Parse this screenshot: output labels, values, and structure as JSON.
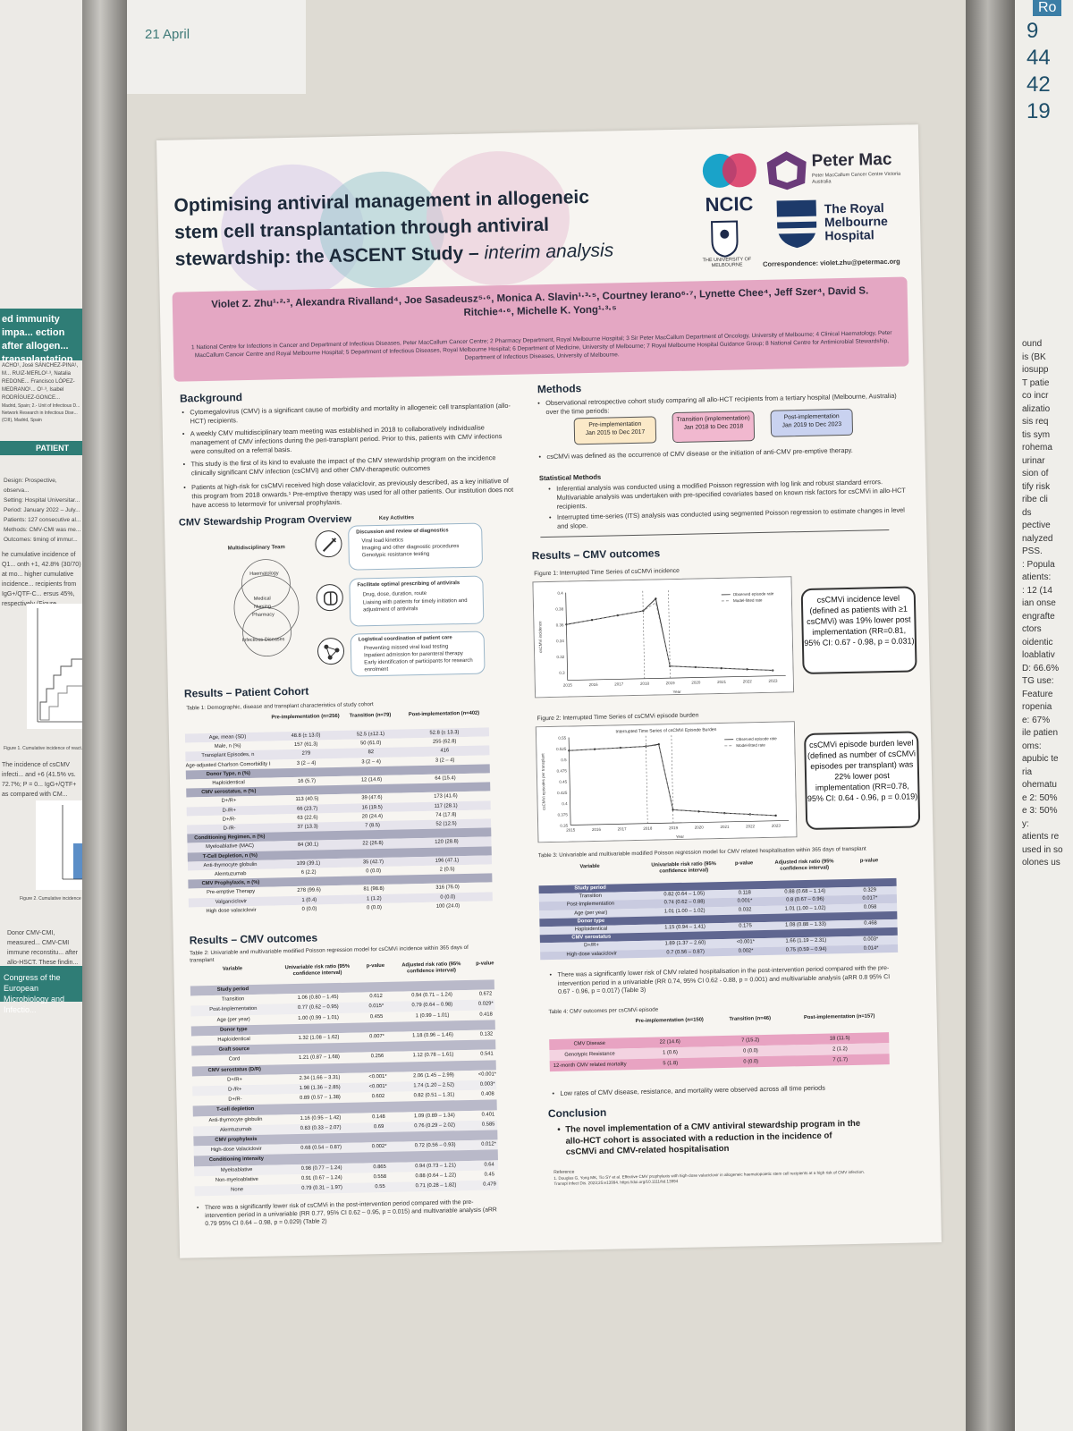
{
  "scene": {
    "date_note": "21 April"
  },
  "left_poster": {
    "title": "ed immunity impa... ection after allogen... transplantation",
    "authors": "ACHO¹, José SÁNCHEZ-PINA¹, M... RUIZ-MERLO²·³, Natalia REDONE... Francisco LÓPEZ-MEDRANO¹... O¹·³, Isabel RODRÍGUEZ-GONCE...",
    "affil": "Madrid, Spain; 2.- Unit of Infectious D... Network Research in Infectious Dise... (CIII), Madrid, Spain",
    "patient_label": "PATIENT",
    "design_lines": [
      "Design: Prospective, observa...",
      "Setting: Hospital Universitar...",
      "Period: January 2022 – July...",
      "Patients: 127 consecutive al...",
      "Methods: CMV-CMI was me...",
      "Outcomes: timing of immur..."
    ],
    "cumulative_text": "he cumulative incidence of Q1... onth +1, 42.8% (30/70) at mo... higher cumulative incidence... recipients from IgG+/QTF-C... ersus 45%, respectively (Figure...",
    "fig1_caption": "Figure 1. Cumulative incidence of react...",
    "incidence_text": "The incidence of csCMV infecti... and +6 (41.5% vs. 72.7%; P = 0... IgG+/QTF+ as compared with CM...",
    "fig2_caption": "Figure 2. Cumulative incidence of...",
    "conclusion_text": "Donor CMV-CMI, measured... CMV-CMI immune reconstitu... after allo-HSCT. These findin... CMV-CMI functionality in all... prevention strategies.",
    "congress": "Congress of the European Microbiology and Infectio..."
  },
  "right_poster": {
    "header": "Ro",
    "numbers": [
      "9",
      "44",
      "42",
      "19"
    ],
    "lines": [
      "ound",
      "is (BK",
      "iosupp",
      "T patie",
      "co incr",
      "alizatio",
      "sis req",
      "tis sym",
      "rohema",
      "urinar",
      "sion of",
      "tify risk",
      "ribe cli",
      "ds",
      "pective",
      "nalyzed",
      "PSS.",
      ": Popula",
      "atients:",
      ": 12 (14",
      "ian onse",
      "engrafte",
      "ctors",
      "oidentic",
      "loablativ",
      "D: 66.6%",
      "TG use:",
      "Feature",
      "ropenia",
      "e: 67%",
      "ile patien",
      "oms:",
      "apubic te",
      "ria",
      "ohematu",
      "e 2: 50%",
      "e 3: 50%",
      "y:",
      "atients re",
      "used in so",
      "olones us"
    ]
  },
  "poster": {
    "title_line1": "Optimising antiviral management in allogeneic",
    "title_line2": "stem cell transplantation through antiviral",
    "title_line3_bold": "stewardship: the ASCENT Study – ",
    "title_line3_italic": "interim analysis",
    "logos": {
      "ncic": "NCIC",
      "petermac": "Peter Mac",
      "petermac_sub": "Peter MacCallum Cancer Centre Victoria Australia",
      "rmh": "The Royal Melbourne Hospital",
      "uom": "THE UNIVERSITY OF MELBOURNE",
      "correspondence": "Correspondence: violet.zhu@petermac.org"
    },
    "authors": "Violet Z. Zhu¹·²·³, Alexandra Rivalland⁴, Joe Sasadeusz⁵·⁶, Monica A. Slavin¹·³·⁵, Courtney Ierano⁶·⁷, Lynette Chee⁴, Jeff Szer⁴, David S. Ritchie⁴·⁶, Michelle K. Yong¹·³·⁵",
    "affiliations": "1 National Centre for Infections in Cancer and Department of Infectious Diseases, Peter MacCallum Cancer Centre; 2 Pharmacy Department, Royal Melbourne Hospital; 3 Sir Peter MacCallum Department of Oncology, University of Melbourne; 4 Clinical Haematology, Peter MacCallum Cancer Centre and Royal Melbourne Hospital; 5 Department of Infectious Diseases, Royal Melbourne Hospital; 6 Department of Medicine, University of Melbourne; 7 Royal Melbourne Hospital Guidance Group; 8 National Centre for Antimicrobial Stewardship, Department of Infectious Diseases, University of Melbourne.",
    "background": {
      "heading": "Background",
      "bullets": [
        "Cytomegalovirus (CMV) is a significant cause of morbidity and mortality in allogeneic cell transplantation (allo-HCT) recipients.",
        "A weekly CMV multidisciplinary team meeting was established in 2018 to collaboratively individualise management of CMV infections during the peri-transplant period. Prior to this, patients with CMV infections were consulted on a referral basis.",
        "This study is the first of its kind to evaluate the impact of the CMV stewardship program on the incidence clinically significant CMV infection (csCMVi) and other CMV-therapeutic outcomes",
        "Patients at high-risk for csCMVi received high dose valaciclovir, as previously described, as a key initiative of this program from 2018 onwards.¹ Pre-emptive therapy was used for all other patients. Our institution does not have access to letermovir for universal prophylaxis."
      ]
    },
    "overview": {
      "heading": "CMV Stewardship Program Overview",
      "key_activities": "Key Activities",
      "mdt_label": "Multidisciplinary Team",
      "circles": [
        "Haematology",
        "Medical",
        "Nursing",
        "Pharmacy",
        "Infectious Diseases"
      ],
      "cards": [
        {
          "title": "Discussion and review of diagnostics",
          "items": [
            "Viral load kinetics",
            "Imaging and other diagnostic procedures",
            "Genotypic resistance testing"
          ],
          "icon": "syringe-icon"
        },
        {
          "title": "Facilitate optimal prescribing of antivirals",
          "items": [
            "Drug, dose, duration, route",
            "Liaising with patients for timely initiation and adjustment of antivirals"
          ],
          "icon": "pill-icon"
        },
        {
          "title": "Logistical coordination of patient care",
          "items": [
            "Preventing missed viral load testing",
            "Inpatient admission for parenteral therapy",
            "Early identification of participants for research enrolment"
          ],
          "icon": "network-icon"
        }
      ]
    },
    "patient_cohort": {
      "heading": "Results – Patient Cohort",
      "table_title": "Table 1: Demographic, disease and transplant characteristics of study cohort",
      "columns": [
        "",
        "Pre-implementation (n=256)",
        "Transition (n=79)",
        "Post-implementation (n=402)"
      ],
      "rows": [
        [
          "Age, mean (SD)",
          "48.8 (± 13.0)",
          "52.5 (±12.1)",
          "52.8 (± 13.3)"
        ],
        [
          "Male, n (%)",
          "157 (61.3)",
          "50 (61.0)",
          "255 (62.8)"
        ],
        [
          "Transplant Episodes, n",
          "279",
          "82",
          "416"
        ],
        [
          "Age-adjusted Charlson Comorbidity Index, median (IQR)",
          "3 (2 – 4)",
          "3 (2 – 4)",
          "3 (2 – 4)"
        ],
        [
          "Donor Type, n (%)",
          "",
          "",
          ""
        ],
        [
          "Haploidentical",
          "16 (5.7)",
          "12 (14.6)",
          "64 (15.4)"
        ],
        [
          "CMV serostatus, n (%)",
          "",
          "",
          ""
        ],
        [
          "D+/R+",
          "113 (40.5)",
          "39 (47.6)",
          "173 (41.6)"
        ],
        [
          "D-/R+",
          "66 (23.7)",
          "16 (19.5)",
          "117 (28.1)"
        ],
        [
          "D+/R-",
          "63 (22.6)",
          "20 (24.4)",
          "74 (17.8)"
        ],
        [
          "D-/R-",
          "37 (13.3)",
          "7 (8.5)",
          "52 (12.5)"
        ],
        [
          "Conditioning Regimen, n (%)",
          "",
          "",
          ""
        ],
        [
          "Myeloablative (MAC)",
          "84 (30.1)",
          "22 (26.8)",
          "120 (28.8)"
        ],
        [
          "T-Cell Depletion, n (%)",
          "",
          "",
          ""
        ],
        [
          "Anti-thymocyte globulin",
          "109 (39.1)",
          "35 (42.7)",
          "196 (47.1)"
        ],
        [
          "Alemtuzumab",
          "6 (2.2)",
          "0 (0.0)",
          "2 (0.5)"
        ],
        [
          "CMV Prophylaxis, n (%)",
          "",
          "",
          ""
        ],
        [
          "Pre-emptive Therapy",
          "278 (99.6)",
          "81 (98.8)",
          "316 (76.0)"
        ],
        [
          "Valganciclovir",
          "1 (0.4)",
          "1 (1.2)",
          "0 (0.0)"
        ],
        [
          "High dose valaciclovir",
          "0 (0.0)",
          "0 (0.0)",
          "100 (24.0)"
        ]
      ]
    },
    "cmv_outcomes_left": {
      "heading": "Results – CMV outcomes",
      "table_title": "Table 2: Univariable and multivariable modified Poisson regression model for csCMVi incidence within 365 days of transplant",
      "columns": [
        "Variable",
        "Univariable risk ratio (95% confidence interval)",
        "p-value",
        "Adjusted risk ratio (95% confidence interval)",
        "p-value"
      ],
      "rows": [
        [
          "Study period",
          "",
          "",
          "",
          ""
        ],
        [
          "Transition",
          "1.06 (0.80 – 1.45)",
          "0.612",
          "0.94 (0.71 – 1.24)",
          "0.672"
        ],
        [
          "Post-Implementation",
          "0.77 (0.62 – 0.95)",
          "0.015*",
          "0.79 (0.64 – 0.98)",
          "0.029*"
        ],
        [
          "Age (per year)",
          "1.00 (0.99 – 1.01)",
          "0.455",
          "1 (0.99 – 1.01)",
          "0.418"
        ],
        [
          "Donor type",
          "",
          "",
          "",
          ""
        ],
        [
          "Haploidentical",
          "1.32 (1.08 – 1.62)",
          "0.007*",
          "1.18 (0.96 – 1.46)",
          "0.132"
        ],
        [
          "Graft source",
          "",
          "",
          "",
          ""
        ],
        [
          "Cord",
          "1.21 (0.87 – 1.68)",
          "0.256",
          "1.12 (0.78 – 1.61)",
          "0.541"
        ],
        [
          "CMV serostatus (D/R)",
          "",
          "",
          "",
          ""
        ],
        [
          "D+/R+",
          "2.34 (1.66 – 3.31)",
          "<0.001*",
          "2.06 (1.45 – 2.99)",
          "<0.001*"
        ],
        [
          "D-/R+",
          "1.98 (1.36 – 2.85)",
          "<0.001*",
          "1.74 (1.20 – 2.52)",
          "0.003*"
        ],
        [
          "D+/R-",
          "0.89 (0.57 – 1.38)",
          "0.602",
          "0.82 (0.51 – 1.31)",
          "0.408"
        ],
        [
          "T-cell depletion",
          "",
          "",
          "",
          ""
        ],
        [
          "Anti-thymocyte globulin",
          "1.16 (0.95 – 1.42)",
          "0.148",
          "1.09 (0.89 – 1.34)",
          "0.401"
        ],
        [
          "Alemtuzumab",
          "0.83 (0.33 – 2.07)",
          "0.69",
          "0.76 (0.29 – 2.02)",
          "0.585"
        ],
        [
          "CMV prophylaxis",
          "",
          "",
          "",
          ""
        ],
        [
          "High-dose Valaciclovir",
          "0.68 (0.54 – 0.87)",
          "0.002*",
          "0.72 (0.56 – 0.93)",
          "0.012*"
        ],
        [
          "Conditioning intensity",
          "",
          "",
          "",
          ""
        ],
        [
          "Myeloablative",
          "0.98 (0.77 – 1.24)",
          "0.865",
          "0.94 (0.73 – 1.21)",
          "0.64"
        ],
        [
          "Non-myeloablative",
          "0.91 (0.67 – 1.24)",
          "0.558",
          "0.88 (0.64 – 1.22)",
          "0.45"
        ],
        [
          "None",
          "0.79 (0.31 – 1.97)",
          "0.55",
          "0.71 (0.28 – 1.82)",
          "0.479"
        ]
      ],
      "footer": "There was a significantly lower risk of csCMVi in the post-intervention period compared with the pre-intervention period in a univariable (RR 0.77, 95% CI 0.62 – 0.95, p = 0.015) and multivariable analysis (aRR 0.79 95% CI 0.64 – 0.98, p = 0.029) (Table 2)"
    },
    "methods": {
      "heading": "Methods",
      "bullet1": "Observational retrospective cohort study comparing all allo-HCT recipients from a tertiary hospital (Melbourne, Australia) over the time periods:",
      "periods": [
        {
          "label": "Pre-implementation",
          "range": "Jan 2015 to Dec 2017",
          "color": "#fbe9c8"
        },
        {
          "label": "Transition (implementation)",
          "range": "Jan 2018 to Dec 2018",
          "color": "#f1b8cf"
        },
        {
          "label": "Post-implementation",
          "range": "Jan 2019 to Dec 2023",
          "color": "#c9d2f0"
        }
      ],
      "bullet2": "csCMVi was defined as the occurrence of CMV disease or the initiation of anti-CMV pre-emptive therapy.",
      "stat_heading": "Statistical Methods",
      "stat_bullets": [
        "Inferential analysis was conducted using a modified Poisson regression with log link and robust standard errors. Multivariable analysis was undertaken with pre-specified covariates based on known risk factors for csCMVi in allo-HCT recipients.",
        "Interrupted time-series (ITS) analysis was conducted using segmented Poisson regression to estimate changes in level and slope."
      ]
    },
    "cmv_outcomes_right": {
      "heading": "Results – CMV outcomes",
      "fig1_caption": "Figure 1: Interrupted Time Series of csCMVi incidence",
      "fig2_caption": "Figure 2: Interrupted Time Series of csCMVi episode burden",
      "fig2_inner_title": "Interrupted Time Series of csCMVi Episode Burden",
      "callout1": "csCMVi incidence level (defined as patients with ≥1 csCMVi) was 19% lower post implementation (RR=0.81, 95% CI: 0.67 - 0.98, p = 0.031)",
      "callout2": "csCMVi episode burden level (defined as number of csCMVi episodes per transplant) was 22% lower post implementation (RR=0.78, 95% CI: 0.64 - 0.96, p = 0.019)",
      "table3_title": "Table 3: Univariable and multivariable modified Poisson regression model for CMV related hospitalisation within 365 days of transplant",
      "table3_columns": [
        "Variable",
        "Univariable risk ratio (95% confidence interval)",
        "p-value",
        "Adjusted risk ratio (95% confidence interval)",
        "p-value"
      ],
      "table3_rows": [
        [
          "Study period",
          "",
          "",
          "",
          ""
        ],
        [
          "Transition",
          "0.82 (0.64 – 1.05)",
          "0.118",
          "0.88 (0.68 – 1.14)",
          "0.329"
        ],
        [
          "Post-Implementation",
          "0.74 (0.62 – 0.88)",
          "0.001*",
          "0.8 (0.67 – 0.96)",
          "0.017*"
        ],
        [
          "Age (per year)",
          "1.01 (1.00 – 1.02)",
          "0.032",
          "1.01 (1.00 – 1.02)",
          "0.058"
        ],
        [
          "Donor type",
          "",
          "",
          "",
          ""
        ],
        [
          "Haploidentical",
          "1.15 (0.94 – 1.41)",
          "0.175",
          "1.08 (0.88 – 1.33)",
          "0.468"
        ],
        [
          "CMV serostatus",
          "",
          "",
          "",
          ""
        ],
        [
          "D+/R+",
          "1.89 (1.37 – 2.60)",
          "<0.001*",
          "1.66 (1.19 – 2.31)",
          "0.003*"
        ],
        [
          "High-dose valaciclovir",
          "0.7 (0.56 – 0.87)",
          "0.002*",
          "0.75 (0.59 – 0.94)",
          "0.014*"
        ]
      ],
      "table3_footer": "There was a significantly lower risk of CMV related hospitalisation in the post-intervention period compared with the pre-intervention period in a univariable (RR 0.74, 95% CI 0.62 - 0.88, p = 0.001) and multivariable analysis (aRR 0.8 95% CI 0.67 - 0.96, p = 0.017) (Table 3)",
      "table4_title": "Table 4: CMV outcomes per csCMVi episode",
      "table4_columns": [
        "",
        "Pre-implementation (n=150)",
        "Transition (n=46)",
        "Post-implementation (n=157)"
      ],
      "table4_rows": [
        [
          "CMV Disease",
          "22 (14.6)",
          "7 (15.2)",
          "18 (11.5)"
        ],
        [
          "Genotypic Resistance",
          "1 (0.6)",
          "0 (0.0)",
          "2 (1.2)"
        ],
        [
          "12-month CMV related mortality",
          "5 (1.8)",
          "0 (0.0)",
          "7 (1.7)"
        ]
      ],
      "table4_footer": "Low rates of CMV disease, resistance, and mortality were observed across all time periods"
    },
    "conclusion": {
      "heading": "Conclusion",
      "text": "The novel implementation of a CMV antiviral stewardship program in the allo-HCT cohort is associated with a reduction in the incidence of csCMVi and CMV-related hospitalisation"
    },
    "reference": {
      "label": "Reference",
      "text": "1. Douglas G, Yong MK, Tio SY et al. Effective CMV prophylaxis with high-dose valaciclovir in allogeneic haematopoietic stem cell recipients at a high risk of CMV infection. Transpl Infect Dis. 2023;25:e13994. https://doi.org/10.1111/tid.13994"
    }
  },
  "chart_data": [
    {
      "type": "line",
      "title": "Figure 1: Interrupted Time Series of csCMVi incidence",
      "xlabel": "Year",
      "ylabel": "csCMVi incidence",
      "x": [
        2015,
        2016,
        2017,
        2018,
        2018.5,
        2019,
        2020,
        2021,
        2022,
        2023
      ],
      "series": [
        {
          "name": "Observed episode rate",
          "values": [
            0.36,
            0.365,
            0.37,
            0.375,
            0.39,
            0.305,
            0.303,
            0.301,
            0.299,
            0.297
          ]
        },
        {
          "name": "Model-fitted rate",
          "values": [
            0.36,
            0.365,
            0.37,
            0.375,
            0.385,
            0.305,
            0.303,
            0.301,
            0.299,
            0.297
          ]
        }
      ],
      "xlim": [
        2015,
        2023.5
      ],
      "ylim": [
        0.29,
        0.4
      ],
      "yticks": [
        0.3,
        0.32,
        0.34,
        0.36,
        0.38,
        0.4
      ],
      "xticks": [
        2015,
        2016,
        2017,
        2018,
        2019,
        2020,
        2021,
        2022,
        2023
      ],
      "vlines": [
        2018,
        2019
      ],
      "legend": "top-right"
    },
    {
      "type": "line",
      "title": "Interrupted Time Series of csCMVi Episode Burden",
      "xlabel": "Year",
      "ylabel": "csCMVi episodes per transplant",
      "x": [
        2015,
        2016,
        2017,
        2018,
        2018.5,
        2019,
        2020,
        2021,
        2022,
        2023
      ],
      "series": [
        {
          "name": "Observed episode rate",
          "values": [
            0.52,
            0.522,
            0.524,
            0.526,
            0.53,
            0.38,
            0.375,
            0.37,
            0.366,
            0.362
          ]
        },
        {
          "name": "Model-fitted rate",
          "values": [
            0.52,
            0.522,
            0.524,
            0.526,
            0.528,
            0.38,
            0.375,
            0.37,
            0.366,
            0.362
          ]
        }
      ],
      "xlim": [
        2015,
        2023.5
      ],
      "ylim": [
        0.35,
        0.55
      ],
      "yticks": [
        0.35,
        0.375,
        0.4,
        0.425,
        0.45,
        0.475,
        0.5,
        0.525,
        0.55
      ],
      "xticks": [
        2015,
        2016,
        2017,
        2018,
        2019,
        2020,
        2021,
        2022,
        2023
      ],
      "vlines": [
        2018,
        2019
      ],
      "legend": "top-right"
    }
  ]
}
